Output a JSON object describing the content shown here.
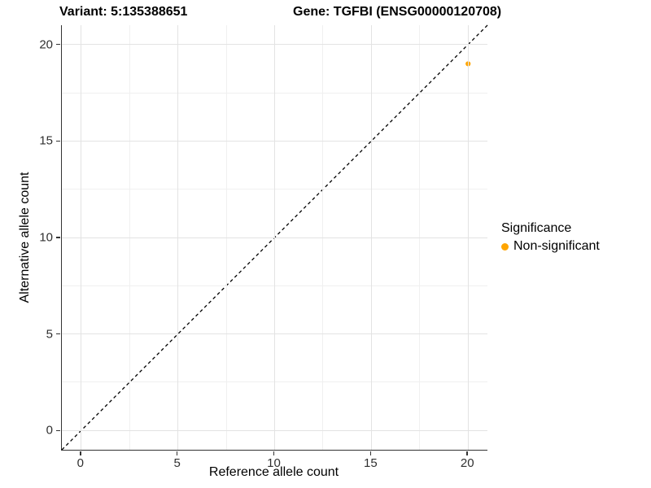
{
  "title": {
    "variant": "Variant: 5:135388651",
    "gene": "Gene: TGFBI (ENSG00000120708)"
  },
  "axes": {
    "x": {
      "label": "Reference allele count",
      "tick_labels": [
        "0",
        "5",
        "10",
        "15",
        "20"
      ],
      "major_ticks": [
        0,
        5,
        10,
        15,
        20
      ],
      "minor_ticks": [
        2.5,
        7.5,
        12.5,
        17.5
      ],
      "range": [
        -1,
        21
      ]
    },
    "y": {
      "label": "Alternative allele count",
      "tick_labels": [
        "0",
        "5",
        "10",
        "15",
        "20"
      ],
      "major_ticks": [
        0,
        5,
        10,
        15,
        20
      ],
      "minor_ticks": [
        2.5,
        7.5,
        12.5,
        17.5
      ],
      "range": [
        -1,
        21
      ]
    }
  },
  "legend": {
    "title": "Significance",
    "items": [
      {
        "label": "Non-significant",
        "color": "#FFA500"
      }
    ]
  },
  "colors": {
    "point": "#FFA500",
    "identity_line": "#000000",
    "axis_line": "#333333",
    "grid_major": "#e3e3e3",
    "grid_minor": "#f0f0f0"
  },
  "chart_data": {
    "type": "scatter",
    "title": "Variant: 5:135388651   Gene: TGFBI (ENSG00000120708)",
    "xlabel": "Reference allele count",
    "ylabel": "Alternative allele count",
    "xlim": [
      -1,
      21
    ],
    "ylim": [
      -1,
      21
    ],
    "x_ticks": [
      0,
      5,
      10,
      15,
      20
    ],
    "y_ticks": [
      0,
      5,
      10,
      15,
      20
    ],
    "grid": true,
    "legend_position": "right",
    "series": [
      {
        "name": "Non-significant",
        "color": "#FFA500",
        "points": [
          {
            "x": 20,
            "y": 19
          }
        ]
      }
    ],
    "reference_line": {
      "type": "identity",
      "equation": "y = x",
      "style": "dashed",
      "color": "#000000"
    }
  }
}
